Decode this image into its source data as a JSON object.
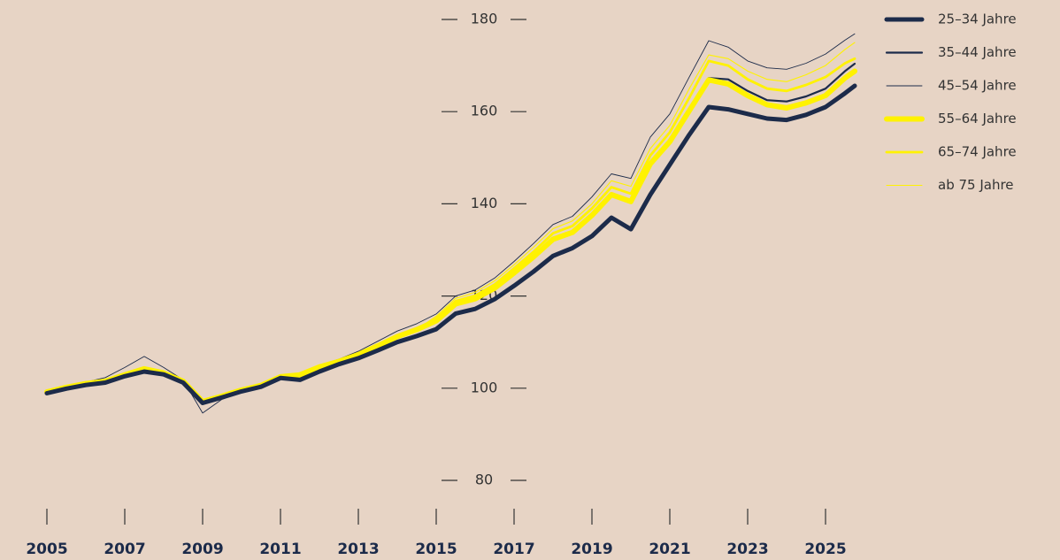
{
  "chart_data": {
    "type": "line",
    "x": [
      2005,
      2005.5,
      2006,
      2006.5,
      2007,
      2007.5,
      2008,
      2008.5,
      2009,
      2009.5,
      2010,
      2010.5,
      2011,
      2011.5,
      2012,
      2012.5,
      2013,
      2013.5,
      2014,
      2014.5,
      2015,
      2015.5,
      2016,
      2016.5,
      2017,
      2017.5,
      2018,
      2018.5,
      2019,
      2019.5,
      2020,
      2020.5,
      2021,
      2021.5,
      2022,
      2022.5,
      2023,
      2023.5,
      2024,
      2024.5,
      2025,
      2025.5,
      2025.75
    ],
    "xlim": [
      2004.5,
      2026
    ],
    "xticks": [
      2005,
      2007,
      2009,
      2011,
      2013,
      2015,
      2017,
      2019,
      2021,
      2023,
      2025
    ],
    "ylim": [
      80,
      180
    ],
    "yticks": [
      80,
      100,
      120,
      140,
      160,
      180
    ],
    "series": [
      {
        "name": "25–34 Jahre",
        "color": "#1c2b4a",
        "line_width": 5,
        "values": [
          98.9,
          99.9,
          100.7,
          101.2,
          102.6,
          103.6,
          103,
          101.2,
          96.8,
          98,
          99.3,
          100.3,
          102.2,
          101.8,
          103.6,
          105.2,
          106.5,
          108.2,
          110,
          111.3,
          112.8,
          116.2,
          117.2,
          119.3,
          122.2,
          125.3,
          128.7,
          130.4,
          133,
          137,
          134.5,
          142,
          148.5,
          155,
          161,
          160.5,
          159.5,
          158.5,
          158.2,
          159.3,
          161,
          164,
          165.6
        ]
      },
      {
        "name": "35–44 Jahre",
        "color": "#1c2b4a",
        "line_width": 2.2,
        "values": [
          99.2,
          100.2,
          101,
          101.5,
          102.9,
          104.2,
          103.3,
          101.5,
          97.1,
          98.3,
          99.6,
          100.6,
          102.5,
          102.9,
          104.6,
          105.8,
          107.3,
          109.2,
          111.2,
          112.7,
          114.6,
          118.6,
          119.7,
          122,
          125.3,
          128.8,
          132.6,
          134.1,
          137.8,
          142.3,
          140.8,
          149,
          153.8,
          160.5,
          167.3,
          167,
          164.5,
          162.5,
          162.2,
          163.3,
          165,
          168.8,
          170.4
        ]
      },
      {
        "name": "45–54 Jahre",
        "color": "#1c2b4a",
        "line_width": 0.9,
        "values": [
          99.2,
          100.2,
          101.3,
          102.3,
          104.5,
          106.9,
          104.5,
          101.8,
          94.6,
          97.6,
          99.4,
          100.6,
          102.8,
          103.2,
          105,
          106.3,
          108,
          110.2,
          112.4,
          114,
          116.1,
          120,
          121.3,
          123.9,
          127.5,
          131.4,
          135.5,
          137.3,
          141.5,
          146.5,
          145.5,
          154.5,
          159.5,
          167.5,
          175.4,
          174,
          171,
          169.5,
          169.2,
          170.5,
          172.5,
          175.5,
          176.9
        ]
      },
      {
        "name": "55–64 Jahre",
        "color": "#fff200",
        "line_width": 6,
        "values": [
          99.2,
          100.2,
          101,
          101.5,
          102.9,
          104.2,
          103.3,
          101.5,
          97.1,
          98.3,
          99.6,
          100.6,
          102.5,
          102.9,
          104.6,
          105.8,
          107.3,
          109.2,
          111.2,
          112.7,
          114.6,
          118.3,
          119.4,
          121.7,
          125,
          128.5,
          132.3,
          133.8,
          137.5,
          142,
          140.5,
          148.7,
          153.5,
          160.2,
          166.9,
          166,
          163.5,
          161.5,
          160.8,
          161.9,
          163.5,
          167.3,
          168.8
        ]
      },
      {
        "name": "65–74 Jahre",
        "color": "#fff200",
        "line_width": 2.8,
        "values": [
          99.2,
          100.2,
          101,
          101.5,
          102.9,
          104.2,
          103.3,
          101.5,
          97.1,
          98.3,
          99.6,
          100.6,
          102.5,
          102.9,
          104.6,
          105.8,
          107.3,
          109.2,
          111.2,
          112.7,
          115.1,
          118.9,
          120.1,
          122.5,
          126,
          129.6,
          133.6,
          135.2,
          139,
          143.6,
          142.2,
          150.5,
          155.5,
          163,
          171,
          170,
          167,
          165,
          164.5,
          165.8,
          167.5,
          170.5,
          171.5
        ]
      },
      {
        "name": "ab 75 Jahre",
        "color": "#fff200",
        "line_width": 1.1,
        "values": [
          99.2,
          100.2,
          101,
          101.5,
          102.9,
          104.2,
          103.3,
          101.5,
          97.1,
          98.3,
          99.6,
          100.6,
          102.5,
          102.9,
          104.6,
          105.8,
          107.3,
          109.2,
          111.2,
          112.7,
          115.6,
          119.5,
          120.8,
          123.3,
          126.8,
          130.6,
          134.6,
          136.3,
          140,
          145,
          143.8,
          152,
          157,
          165,
          172.3,
          171.5,
          168.8,
          167,
          166.5,
          168,
          170,
          173.5,
          175
        ]
      }
    ]
  }
}
